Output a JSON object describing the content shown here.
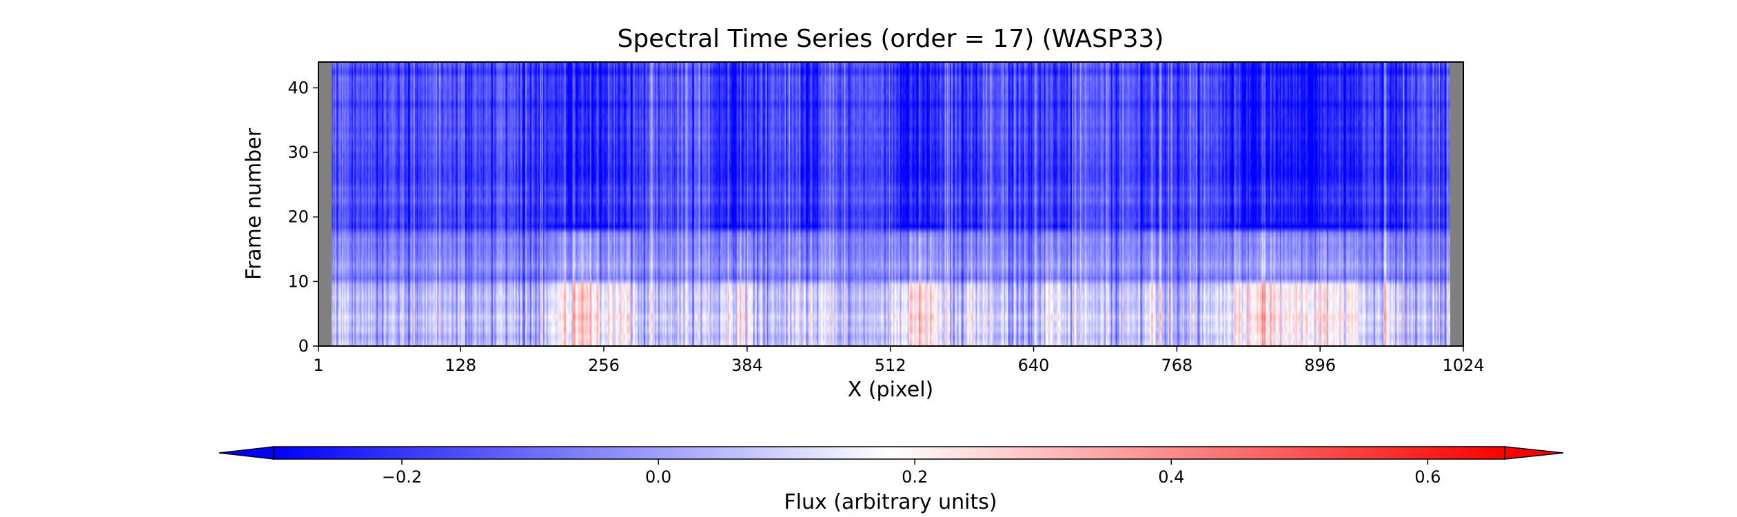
{
  "chart_data": {
    "type": "heatmap",
    "title": "Spectral Time Series (order = 17) (WASP33)",
    "xlabel": "X (pixel)",
    "ylabel": "Frame number",
    "xlim": [
      1,
      1024
    ],
    "ylim": [
      0,
      44
    ],
    "x_ticks": [
      1,
      128,
      256,
      384,
      512,
      640,
      768,
      896,
      1024
    ],
    "y_ticks": [
      0,
      10,
      20,
      30,
      40
    ],
    "masked_columns": [
      [
        1,
        12
      ],
      [
        1013,
        1024
      ]
    ],
    "mask_color": "#808080",
    "colorbar": {
      "label": "Flux (arbitrary units)",
      "ticks": [
        -0.2,
        0.0,
        0.2,
        0.4,
        0.6
      ],
      "tick_labels": [
        "−0.2",
        "0.0",
        "0.2",
        "0.4",
        "0.6"
      ],
      "vmin": -0.3,
      "vmax": 0.66,
      "extend": "both",
      "cmap": "bwr",
      "cmap_colors": [
        "#0000ff",
        "#ffffff",
        "#ff0000"
      ]
    },
    "frame_groups": [
      {
        "frames": [
          0,
          10
        ],
        "level": 0.25
      },
      {
        "frames": [
          10,
          18
        ],
        "level": 0.05
      },
      {
        "frames": [
          18,
          19
        ],
        "level": -0.25
      },
      {
        "frames": [
          19,
          26
        ],
        "level": -0.12
      },
      {
        "frames": [
          26,
          44
        ],
        "level": -0.15
      }
    ],
    "absorption_features": [
      {
        "x": 236,
        "width": 28,
        "depth": 0.35
      },
      {
        "x": 275,
        "width": 10,
        "depth": 0.2
      },
      {
        "x": 375,
        "width": 18,
        "depth": 0.25
      },
      {
        "x": 440,
        "width": 14,
        "depth": 0.18
      },
      {
        "x": 530,
        "width": 16,
        "depth": 0.3
      },
      {
        "x": 548,
        "width": 12,
        "depth": 0.22
      },
      {
        "x": 585,
        "width": 10,
        "depth": 0.18
      },
      {
        "x": 660,
        "width": 12,
        "depth": 0.16
      },
      {
        "x": 745,
        "width": 10,
        "depth": 0.15
      },
      {
        "x": 840,
        "width": 30,
        "depth": 0.35
      },
      {
        "x": 893,
        "width": 26,
        "depth": 0.32
      },
      {
        "x": 925,
        "width": 10,
        "depth": 0.22
      },
      {
        "x": 960,
        "width": 12,
        "depth": 0.2
      }
    ]
  }
}
